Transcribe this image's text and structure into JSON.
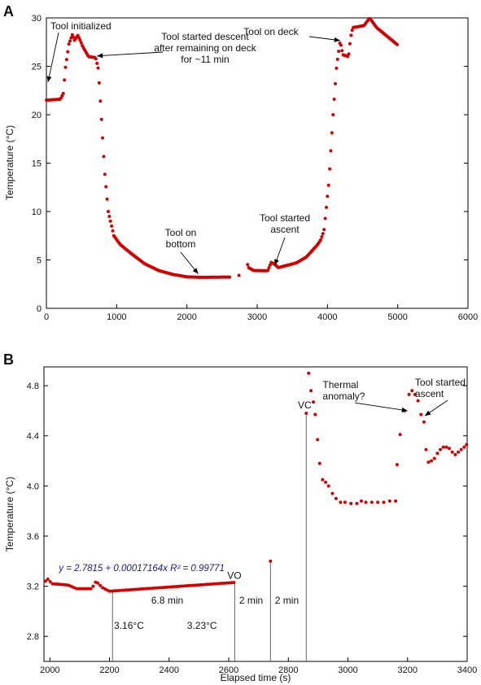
{
  "chart_data": [
    {
      "panel": "A",
      "type": "scatter",
      "xlim": [
        0,
        6000
      ],
      "ylim": [
        0,
        30
      ],
      "xticks": [
        0,
        1000,
        2000,
        3000,
        4000,
        5000,
        6000
      ],
      "yticks": [
        0,
        5,
        10,
        15,
        20,
        25,
        30
      ],
      "xlabel": "",
      "ylabel": "Temperature (°C)",
      "color": "#d40000",
      "series_profile": [
        [
          0,
          21.5
        ],
        [
          200,
          21.6
        ],
        [
          240,
          22.2
        ],
        [
          270,
          24.8
        ],
        [
          320,
          27.3
        ],
        [
          370,
          28.3
        ],
        [
          400,
          27.7
        ],
        [
          450,
          28.2
        ],
        [
          520,
          27.0
        ],
        [
          600,
          26.0
        ],
        [
          700,
          25.9
        ],
        [
          740,
          24.7
        ],
        [
          780,
          20.0
        ],
        [
          830,
          14.0
        ],
        [
          880,
          10.0
        ],
        [
          960,
          7.5
        ],
        [
          1050,
          6.6
        ],
        [
          1200,
          5.7
        ],
        [
          1400,
          4.6
        ],
        [
          1600,
          3.9
        ],
        [
          1800,
          3.5
        ],
        [
          2000,
          3.25
        ],
        [
          2200,
          3.2
        ],
        [
          2620,
          3.23
        ],
        [
          2740,
          3.4
        ],
        [
          2860,
          4.6
        ],
        [
          2880,
          4.2
        ],
        [
          2950,
          3.9
        ],
        [
          3150,
          3.88
        ],
        [
          3200,
          4.75
        ],
        [
          3260,
          4.5
        ],
        [
          3300,
          4.2
        ],
        [
          3560,
          4.7
        ],
        [
          3700,
          5.3
        ],
        [
          3850,
          6.5
        ],
        [
          3900,
          7.0
        ],
        [
          3950,
          8.0
        ],
        [
          4020,
          13.0
        ],
        [
          4080,
          20.0
        ],
        [
          4130,
          25.0
        ],
        [
          4180,
          27.6
        ],
        [
          4220,
          26.2
        ],
        [
          4300,
          26.0
        ],
        [
          4330,
          28.0
        ],
        [
          4360,
          29.0
        ],
        [
          4520,
          29.2
        ],
        [
          4600,
          30.0
        ],
        [
          4700,
          29.0
        ],
        [
          5000,
          27.2
        ]
      ],
      "gap": [
        2620,
        2850
      ],
      "isolated_points": [
        [
          2740,
          3.4
        ]
      ],
      "annotations": [
        {
          "id": "tool-initialized",
          "lines": [
            "Tool initialized"
          ],
          "point": [
            0,
            23.2
          ]
        },
        {
          "id": "tool-started-descent",
          "lines": [
            "Tool started descent",
            "after remaining on deck",
            "for ~11 min"
          ],
          "point": [
            720,
            25.9
          ]
        },
        {
          "id": "tool-on-deck",
          "lines": [
            "Tool on deck"
          ],
          "point": [
            4180,
            27.5
          ]
        },
        {
          "id": "tool-on-bottom",
          "lines": [
            "Tool on",
            "bottom"
          ],
          "point": [
            2160,
            3.4
          ]
        },
        {
          "id": "tool-started-ascent",
          "lines": [
            "Tool started",
            "ascent"
          ],
          "point": [
            3250,
            4.3
          ]
        }
      ]
    },
    {
      "panel": "B",
      "type": "scatter",
      "xlim": [
        1980,
        3400
      ],
      "ylim": [
        2.6,
        4.95
      ],
      "xticks": [
        2000,
        2200,
        2400,
        2600,
        2800,
        3000,
        3200,
        3400
      ],
      "yticks": [
        2.8,
        3.2,
        3.6,
        4.0,
        4.4,
        4.8
      ],
      "xlabel": "Elapsed time (s)",
      "ylabel": "Temperature (°C)",
      "color": "#d40000",
      "series_profile": [
        [
          1985,
          3.24
        ],
        [
          1995,
          3.26
        ],
        [
          2005,
          3.22
        ],
        [
          2060,
          3.21
        ],
        [
          2090,
          3.18
        ],
        [
          2140,
          3.18
        ],
        [
          2155,
          3.24
        ],
        [
          2175,
          3.19
        ],
        [
          2200,
          3.16
        ],
        [
          2620,
          3.23
        ]
      ],
      "extra_points": [
        [
          2740,
          3.4
        ],
        [
          2860,
          4.58
        ],
        [
          2868,
          4.9
        ],
        [
          2876,
          4.76
        ],
        [
          2884,
          4.67
        ],
        [
          2890,
          4.57
        ],
        [
          2898,
          4.37
        ],
        [
          2905,
          4.18
        ],
        [
          2915,
          4.05
        ],
        [
          2925,
          4.03
        ],
        [
          2935,
          4.0
        ],
        [
          2948,
          3.94
        ],
        [
          2960,
          3.9
        ],
        [
          2975,
          3.87
        ],
        [
          2990,
          3.87
        ],
        [
          3010,
          3.86
        ],
        [
          3030,
          3.86
        ],
        [
          3045,
          3.88
        ],
        [
          3060,
          3.87
        ],
        [
          3080,
          3.87
        ],
        [
          3100,
          3.87
        ],
        [
          3120,
          3.87
        ],
        [
          3140,
          3.88
        ],
        [
          3160,
          3.88
        ],
        [
          3165,
          4.17
        ],
        [
          3175,
          4.41
        ],
        [
          3190,
          4.6
        ],
        [
          3205,
          4.73
        ],
        [
          3215,
          4.76
        ],
        [
          3225,
          4.73
        ],
        [
          3235,
          4.68
        ],
        [
          3245,
          4.57
        ],
        [
          3255,
          4.51
        ],
        [
          3262,
          4.29
        ],
        [
          3270,
          4.19
        ],
        [
          3280,
          4.2
        ],
        [
          3290,
          4.22
        ],
        [
          3300,
          4.26
        ],
        [
          3310,
          4.29
        ],
        [
          3320,
          4.31
        ],
        [
          3330,
          4.31
        ],
        [
          3340,
          4.3
        ],
        [
          3350,
          4.27
        ],
        [
          3360,
          4.25
        ],
        [
          3370,
          4.27
        ],
        [
          3380,
          4.29
        ],
        [
          3390,
          4.31
        ],
        [
          3398,
          4.33
        ]
      ],
      "fit": {
        "text": "y = 2.7815 + 0.00017164x   R² = 0.99771",
        "label_pos": [
          2030,
          3.32
        ]
      },
      "vlines": [
        {
          "id": "vline-2210",
          "x": 2210,
          "top": 3.16
        },
        {
          "id": "vline-2620",
          "x": 2620,
          "top": 3.23
        },
        {
          "id": "vline-2740",
          "x": 2740,
          "top": 3.4
        },
        {
          "id": "vline-2860",
          "x": 2860,
          "top": 4.58
        }
      ],
      "annotations": [
        {
          "id": "temp-start",
          "lines": [
            "3.16°C"
          ],
          "pos": [
            2215,
            2.86
          ]
        },
        {
          "id": "temp-end",
          "lines": [
            "3.23°C"
          ],
          "pos": [
            2460,
            2.86
          ]
        },
        {
          "id": "duration-68",
          "lines": [
            "6.8 min"
          ],
          "pos": [
            2340,
            3.06
          ]
        },
        {
          "id": "duration-2a",
          "lines": [
            "2 min"
          ],
          "pos": [
            2635,
            3.06
          ]
        },
        {
          "id": "duration-2b",
          "lines": [
            "2 min"
          ],
          "pos": [
            2755,
            3.06
          ]
        },
        {
          "id": "vo",
          "lines": [
            "VO"
          ],
          "pos": [
            2595,
            3.26
          ]
        },
        {
          "id": "vc",
          "lines": [
            "VC"
          ],
          "pos": [
            2832,
            4.62
          ]
        },
        {
          "id": "thermal-anomaly",
          "lines": [
            "Thermal",
            "anomaly?"
          ],
          "pos": [
            2915,
            4.78
          ],
          "point": [
            3200,
            4.6
          ]
        },
        {
          "id": "tool-started-ascent-b",
          "lines": [
            "Tool started",
            "ascent"
          ],
          "pos": [
            3225,
            4.8
          ],
          "point": [
            3258,
            4.56
          ]
        }
      ]
    }
  ],
  "panels": {
    "a_letter": "A",
    "b_letter": "B"
  }
}
